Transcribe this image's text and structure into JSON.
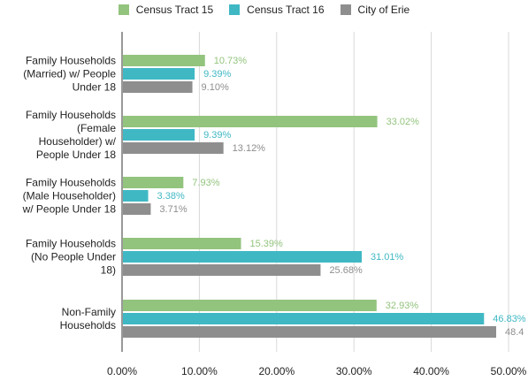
{
  "chart_data": {
    "type": "bar",
    "orientation": "horizontal",
    "categories": [
      [
        "Family Households",
        "(Married) w/ People",
        "Under 18"
      ],
      [
        "Family Households",
        "(Female",
        "Householder) w/",
        "People Under 18"
      ],
      [
        "Family Households",
        "(Male Householder)",
        "w/ People Under 18"
      ],
      [
        "Family Households",
        "(No People Under",
        "18)"
      ],
      [
        "Non-Family",
        "Households"
      ]
    ],
    "series": [
      {
        "name": "Census Tract 15",
        "color": "#93c47d",
        "values": [
          10.73,
          33.02,
          7.93,
          15.39,
          32.93
        ],
        "labels": [
          "10.73%",
          "33.02%",
          "7.93%",
          "15.39%",
          "32.93%"
        ]
      },
      {
        "name": "Census Tract 16",
        "color": "#3fb8c4",
        "values": [
          9.39,
          9.39,
          3.38,
          31.01,
          46.83
        ],
        "labels": [
          "9.39%",
          "9.39%",
          "3.38%",
          "31.01%",
          "46.83%"
        ]
      },
      {
        "name": "City of Erie",
        "color": "#8e8e8e",
        "values": [
          9.1,
          13.12,
          3.71,
          25.68,
          48.4
        ],
        "labels": [
          "9.10%",
          "13.12%",
          "3.71%",
          "25.68%",
          "48.4"
        ]
      }
    ],
    "xlim": [
      0,
      50
    ],
    "xticks": [
      0,
      10,
      20,
      30,
      40,
      50
    ],
    "xtick_labels": [
      "0.00%",
      "10.00%",
      "20.00%",
      "30.00%",
      "40.00%",
      "50.00%"
    ],
    "grid": true,
    "legend_position": "top",
    "label_color": "#aaaaaa",
    "grid_color": "#d9d9d9"
  }
}
